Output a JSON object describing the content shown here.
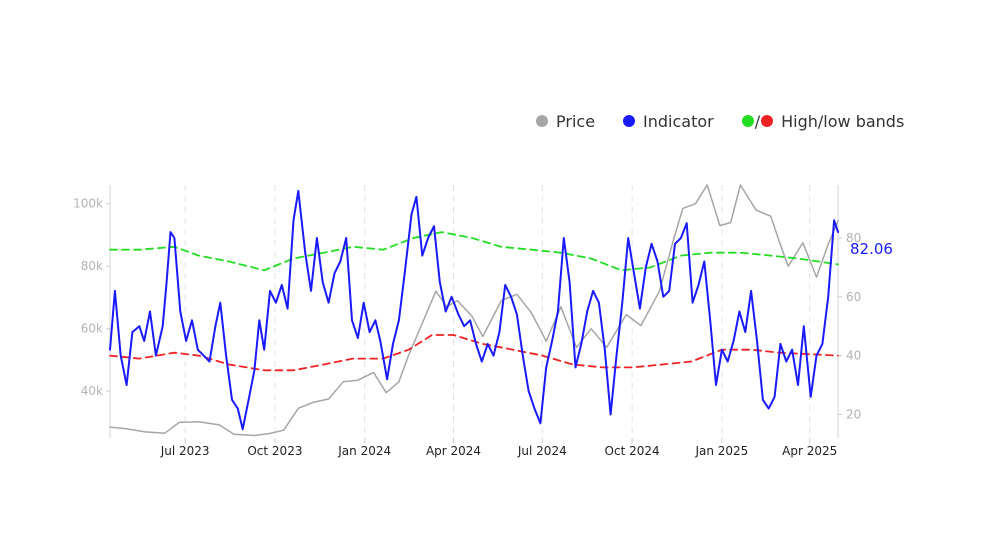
{
  "legend": {
    "price": {
      "label": "Price",
      "color": "#a6a6a6"
    },
    "indicator": {
      "label": "Indicator",
      "color": "#1a1aff"
    },
    "bands": {
      "label": "High/low bands",
      "slash": "/",
      "high_color": "#22dd22",
      "low_color": "#ee2222"
    }
  },
  "chart_data": {
    "type": "line",
    "x_range": [
      "2023-04-15",
      "2025-04-30"
    ],
    "x_ticks": [
      {
        "date": "2023-07-01",
        "label": "Jul 2023"
      },
      {
        "date": "2023-10-01",
        "label": "Oct 2023"
      },
      {
        "date": "2024-01-01",
        "label": "Jan 2024"
      },
      {
        "date": "2024-04-01",
        "label": "Apr 2024"
      },
      {
        "date": "2024-07-01",
        "label": "Jul 2024"
      },
      {
        "date": "2024-10-01",
        "label": "Oct 2024"
      },
      {
        "date": "2025-01-01",
        "label": "Jan 2025"
      },
      {
        "date": "2025-04-01",
        "label": "Apr 2025"
      }
    ],
    "left_axis": {
      "range": [
        25000,
        106000
      ],
      "ticks": [
        {
          "v": 40000,
          "label": "40k"
        },
        {
          "v": 60000,
          "label": "60k"
        },
        {
          "v": 80000,
          "label": "80k"
        },
        {
          "v": 100000,
          "label": "100k"
        }
      ]
    },
    "right_axis": {
      "range": [
        12,
        98
      ],
      "ticks": [
        {
          "v": 20,
          "label": "20"
        },
        {
          "v": 40,
          "label": "40"
        },
        {
          "v": 60,
          "label": "60"
        },
        {
          "v": 80,
          "label": "80"
        }
      ]
    },
    "last_value_label": "82.06",
    "grid": "vertical dashed at x ticks",
    "series": [
      {
        "name": "Price",
        "axis": "left",
        "style": "solid",
        "color": "#a6a6a6",
        "points": [
          [
            "2023-04-15",
            28500
          ],
          [
            "2023-05-01",
            28000
          ],
          [
            "2023-05-20",
            27000
          ],
          [
            "2023-06-10",
            26500
          ],
          [
            "2023-06-25",
            30000
          ],
          [
            "2023-07-15",
            30200
          ],
          [
            "2023-08-05",
            29200
          ],
          [
            "2023-08-20",
            26200
          ],
          [
            "2023-09-10",
            25800
          ],
          [
            "2023-09-25",
            26400
          ],
          [
            "2023-10-10",
            27500
          ],
          [
            "2023-10-25",
            34500
          ],
          [
            "2023-11-10",
            36500
          ],
          [
            "2023-11-25",
            37500
          ],
          [
            "2023-12-10",
            43000
          ],
          [
            "2023-12-25",
            43500
          ],
          [
            "2024-01-10",
            46000
          ],
          [
            "2024-01-23",
            39500
          ],
          [
            "2024-02-05",
            43000
          ],
          [
            "2024-02-15",
            51500
          ],
          [
            "2024-02-28",
            61000
          ],
          [
            "2024-03-14",
            72000
          ],
          [
            "2024-03-25",
            67000
          ],
          [
            "2024-04-05",
            69000
          ],
          [
            "2024-04-20",
            64000
          ],
          [
            "2024-05-01",
            57500
          ],
          [
            "2024-05-20",
            69000
          ],
          [
            "2024-06-05",
            71000
          ],
          [
            "2024-06-20",
            65000
          ],
          [
            "2024-07-05",
            56000
          ],
          [
            "2024-07-20",
            67000
          ],
          [
            "2024-08-05",
            54000
          ],
          [
            "2024-08-20",
            60000
          ],
          [
            "2024-09-05",
            54000
          ],
          [
            "2024-09-25",
            64500
          ],
          [
            "2024-10-10",
            61000
          ],
          [
            "2024-10-29",
            72000
          ],
          [
            "2024-11-12",
            88000
          ],
          [
            "2024-11-22",
            98500
          ],
          [
            "2024-12-05",
            100000
          ],
          [
            "2024-12-17",
            106000
          ],
          [
            "2024-12-30",
            93000
          ],
          [
            "2025-01-10",
            94000
          ],
          [
            "2025-01-20",
            106000
          ],
          [
            "2025-02-05",
            98000
          ],
          [
            "2025-02-20",
            96000
          ],
          [
            "2025-03-03",
            86000
          ],
          [
            "2025-03-10",
            80000
          ],
          [
            "2025-03-25",
            87500
          ],
          [
            "2025-04-08",
            76500
          ],
          [
            "2025-04-20",
            87000
          ],
          [
            "2025-04-30",
            94500
          ]
        ]
      },
      {
        "name": "Indicator",
        "axis": "right",
        "style": "solid",
        "color": "#1a1aff",
        "points": [
          [
            "2023-04-15",
            42
          ],
          [
            "2023-04-20",
            62
          ],
          [
            "2023-04-26",
            40
          ],
          [
            "2023-05-02",
            30
          ],
          [
            "2023-05-08",
            48
          ],
          [
            "2023-05-15",
            50
          ],
          [
            "2023-05-20",
            45
          ],
          [
            "2023-05-26",
            55
          ],
          [
            "2023-06-01",
            40
          ],
          [
            "2023-06-08",
            50
          ],
          [
            "2023-06-12",
            65
          ],
          [
            "2023-06-16",
            82
          ],
          [
            "2023-06-20",
            80
          ],
          [
            "2023-06-26",
            55
          ],
          [
            "2023-07-02",
            45
          ],
          [
            "2023-07-08",
            52
          ],
          [
            "2023-07-14",
            42
          ],
          [
            "2023-07-20",
            40
          ],
          [
            "2023-07-26",
            38
          ],
          [
            "2023-08-01",
            50
          ],
          [
            "2023-08-06",
            58
          ],
          [
            "2023-08-12",
            40
          ],
          [
            "2023-08-18",
            25
          ],
          [
            "2023-08-24",
            22
          ],
          [
            "2023-08-29",
            15
          ],
          [
            "2023-09-04",
            25
          ],
          [
            "2023-09-10",
            35
          ],
          [
            "2023-09-15",
            52
          ],
          [
            "2023-09-20",
            42
          ],
          [
            "2023-09-26",
            62
          ],
          [
            "2023-10-02",
            58
          ],
          [
            "2023-10-08",
            64
          ],
          [
            "2023-10-14",
            56
          ],
          [
            "2023-10-20",
            86
          ],
          [
            "2023-10-25",
            96
          ],
          [
            "2023-11-01",
            75
          ],
          [
            "2023-11-07",
            62
          ],
          [
            "2023-11-13",
            80
          ],
          [
            "2023-11-19",
            65
          ],
          [
            "2023-11-25",
            58
          ],
          [
            "2023-12-01",
            68
          ],
          [
            "2023-12-07",
            72
          ],
          [
            "2023-12-13",
            80
          ],
          [
            "2023-12-19",
            52
          ],
          [
            "2023-12-25",
            46
          ],
          [
            "2023-12-31",
            58
          ],
          [
            "2024-01-06",
            48
          ],
          [
            "2024-01-12",
            52
          ],
          [
            "2024-01-17",
            45
          ],
          [
            "2024-01-24",
            32
          ],
          [
            "2024-01-30",
            44
          ],
          [
            "2024-02-05",
            52
          ],
          [
            "2024-02-11",
            68
          ],
          [
            "2024-02-18",
            88
          ],
          [
            "2024-02-23",
            94
          ],
          [
            "2024-02-29",
            74
          ],
          [
            "2024-03-06",
            80
          ],
          [
            "2024-03-12",
            84
          ],
          [
            "2024-03-18",
            65
          ],
          [
            "2024-03-24",
            55
          ],
          [
            "2024-03-30",
            60
          ],
          [
            "2024-04-06",
            54
          ],
          [
            "2024-04-12",
            50
          ],
          [
            "2024-04-18",
            52
          ],
          [
            "2024-04-24",
            44
          ],
          [
            "2024-04-30",
            38
          ],
          [
            "2024-05-06",
            44
          ],
          [
            "2024-05-12",
            40
          ],
          [
            "2024-05-18",
            48
          ],
          [
            "2024-05-24",
            64
          ],
          [
            "2024-05-30",
            60
          ],
          [
            "2024-06-05",
            54
          ],
          [
            "2024-06-11",
            40
          ],
          [
            "2024-06-17",
            28
          ],
          [
            "2024-06-23",
            22
          ],
          [
            "2024-06-29",
            17
          ],
          [
            "2024-07-05",
            36
          ],
          [
            "2024-07-11",
            45
          ],
          [
            "2024-07-17",
            55
          ],
          [
            "2024-07-23",
            80
          ],
          [
            "2024-07-29",
            65
          ],
          [
            "2024-08-04",
            36
          ],
          [
            "2024-08-10",
            44
          ],
          [
            "2024-08-16",
            55
          ],
          [
            "2024-08-22",
            62
          ],
          [
            "2024-08-28",
            58
          ],
          [
            "2024-09-03",
            42
          ],
          [
            "2024-09-09",
            20
          ],
          [
            "2024-09-15",
            40
          ],
          [
            "2024-09-21",
            58
          ],
          [
            "2024-09-27",
            80
          ],
          [
            "2024-10-03",
            68
          ],
          [
            "2024-10-09",
            56
          ],
          [
            "2024-10-15",
            70
          ],
          [
            "2024-10-21",
            78
          ],
          [
            "2024-10-27",
            72
          ],
          [
            "2024-11-02",
            60
          ],
          [
            "2024-11-08",
            62
          ],
          [
            "2024-11-14",
            78
          ],
          [
            "2024-11-20",
            80
          ],
          [
            "2024-11-26",
            85
          ],
          [
            "2024-12-02",
            58
          ],
          [
            "2024-12-08",
            64
          ],
          [
            "2024-12-14",
            72
          ],
          [
            "2024-12-20",
            52
          ],
          [
            "2024-12-26",
            30
          ],
          [
            "2025-01-01",
            42
          ],
          [
            "2025-01-07",
            38
          ],
          [
            "2025-01-13",
            45
          ],
          [
            "2025-01-19",
            55
          ],
          [
            "2025-01-25",
            48
          ],
          [
            "2025-01-31",
            62
          ],
          [
            "2025-02-06",
            45
          ],
          [
            "2025-02-12",
            25
          ],
          [
            "2025-02-18",
            22
          ],
          [
            "2025-02-24",
            26
          ],
          [
            "2025-03-02",
            44
          ],
          [
            "2025-03-08",
            38
          ],
          [
            "2025-03-14",
            42
          ],
          [
            "2025-03-20",
            30
          ],
          [
            "2025-03-26",
            50
          ],
          [
            "2025-04-02",
            26
          ],
          [
            "2025-04-08",
            40
          ],
          [
            "2025-04-14",
            44
          ],
          [
            "2025-04-20",
            60
          ],
          [
            "2025-04-26",
            86
          ],
          [
            "2025-04-30",
            82
          ]
        ]
      },
      {
        "name": "High band",
        "axis": "right",
        "style": "dashed",
        "color": "#22dd22",
        "points": [
          [
            "2023-04-15",
            76
          ],
          [
            "2023-05-15",
            76
          ],
          [
            "2023-06-20",
            77
          ],
          [
            "2023-07-15",
            74
          ],
          [
            "2023-08-15",
            72
          ],
          [
            "2023-09-20",
            69
          ],
          [
            "2023-10-20",
            73
          ],
          [
            "2023-11-20",
            75
          ],
          [
            "2023-12-20",
            77
          ],
          [
            "2024-01-20",
            76
          ],
          [
            "2024-02-20",
            80
          ],
          [
            "2024-03-20",
            82
          ],
          [
            "2024-04-20",
            80
          ],
          [
            "2024-05-20",
            77
          ],
          [
            "2024-06-20",
            76
          ],
          [
            "2024-07-20",
            75
          ],
          [
            "2024-08-20",
            73
          ],
          [
            "2024-09-20",
            69
          ],
          [
            "2024-10-20",
            70
          ],
          [
            "2024-11-20",
            74
          ],
          [
            "2024-12-20",
            75
          ],
          [
            "2025-01-20",
            75
          ],
          [
            "2025-02-20",
            74
          ],
          [
            "2025-03-20",
            73
          ],
          [
            "2025-04-30",
            71
          ]
        ]
      },
      {
        "name": "Low band",
        "axis": "right",
        "style": "dashed",
        "color": "#ee2222",
        "points": [
          [
            "2023-04-15",
            40
          ],
          [
            "2023-05-15",
            39
          ],
          [
            "2023-06-20",
            41
          ],
          [
            "2023-07-15",
            40
          ],
          [
            "2023-08-15",
            37
          ],
          [
            "2023-09-20",
            35
          ],
          [
            "2023-10-20",
            35
          ],
          [
            "2023-11-20",
            37
          ],
          [
            "2023-12-20",
            39
          ],
          [
            "2024-01-20",
            39
          ],
          [
            "2024-02-15",
            42
          ],
          [
            "2024-03-10",
            47
          ],
          [
            "2024-04-01",
            47
          ],
          [
            "2024-05-01",
            44
          ],
          [
            "2024-06-01",
            42
          ],
          [
            "2024-07-01",
            40
          ],
          [
            "2024-08-01",
            37
          ],
          [
            "2024-09-01",
            36
          ],
          [
            "2024-10-01",
            36
          ],
          [
            "2024-11-01",
            37
          ],
          [
            "2024-12-01",
            38
          ],
          [
            "2025-01-01",
            42
          ],
          [
            "2025-02-01",
            42
          ],
          [
            "2025-03-01",
            41
          ],
          [
            "2025-04-30",
            40
          ]
        ]
      }
    ]
  }
}
